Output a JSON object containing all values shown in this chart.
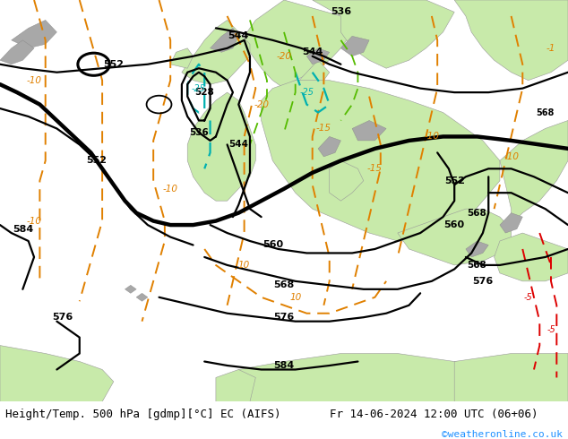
{
  "title_left": "Height/Temp. 500 hPa [gdmp][°C] EC (AIFS)",
  "title_right": "Fr 14-06-2024 12:00 UTC (06+06)",
  "credit": "©weatheronline.co.uk",
  "sea_color": "#d0d0d0",
  "land_color": "#c8eaaa",
  "gray_terrain": "#a8a8a8",
  "fig_width": 6.34,
  "fig_height": 4.9,
  "dpi": 100,
  "title_fontsize": 9.0,
  "credit_fontsize": 8,
  "credit_color": "#1e90ff",
  "contour_black_lw": 1.6,
  "contour_thick_lw": 3.2,
  "temp_lw": 1.4
}
